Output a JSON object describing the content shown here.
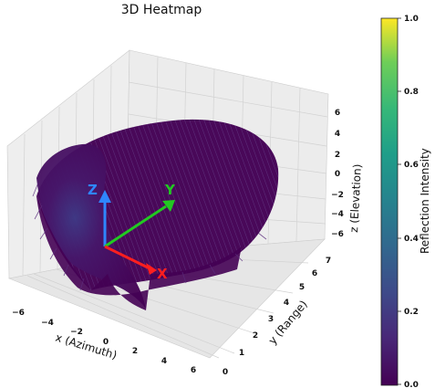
{
  "chart_data": {
    "type": "heatmap",
    "title": "3D Heatmap",
    "xlabel": "x (Azimuth)",
    "ylabel": "y (Range)",
    "zlabel": "z (Elevation)",
    "x_ticks": [
      "−6",
      "−4",
      "−2",
      "0",
      "2",
      "4",
      "6"
    ],
    "y_ticks": [
      "0",
      "1",
      "2",
      "3",
      "4",
      "5",
      "6",
      "7"
    ],
    "z_ticks": [
      "6",
      "4",
      "2",
      "0",
      "−2",
      "−4",
      "−6"
    ],
    "xlim": [
      -7,
      7
    ],
    "ylim": [
      0,
      7
    ],
    "zlim": [
      -7,
      7
    ],
    "grid": true,
    "colorbar": {
      "label": "Reflection Intensity",
      "ticks": [
        "1.0",
        "0.8",
        "0.6",
        "0.4",
        "0.2",
        "0.0"
      ],
      "range": [
        0.0,
        1.0
      ],
      "colormap": "viridis"
    },
    "arrows": [
      {
        "label": "X",
        "color": "#ff1f1f"
      },
      {
        "label": "Y",
        "color": "#22c922"
      },
      {
        "label": "Z",
        "color": "#2f86ff"
      }
    ],
    "dominant_intensity": 0.0,
    "max_intensity_approx": 0.25
  },
  "colors": {
    "surface": "#440154",
    "surface_mid": "#3b2a78",
    "pane": "#ececec",
    "grid": "#d2d2d2"
  }
}
